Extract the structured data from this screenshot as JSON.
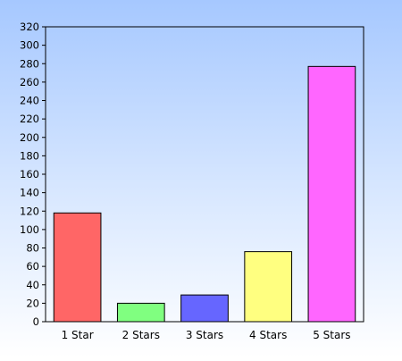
{
  "chart_data": {
    "type": "bar",
    "title": "",
    "xlabel": "",
    "ylabel": "",
    "categories": [
      "1 Star",
      "2 Stars",
      "3 Stars",
      "4 Stars",
      "5 Stars"
    ],
    "values": [
      118,
      20,
      29,
      76,
      277
    ],
    "colors": [
      "#ff6666",
      "#80ff80",
      "#6666ff",
      "#ffff80",
      "#ff66ff"
    ],
    "ylim": [
      0,
      320
    ],
    "yticks": [
      0,
      20,
      40,
      60,
      80,
      100,
      120,
      140,
      160,
      180,
      200,
      220,
      240,
      260,
      280,
      300,
      320
    ],
    "grid": false,
    "legend": "none",
    "background": {
      "gradient_top": "#a6c8ff",
      "gradient_bottom": "#ffffff"
    },
    "plot_background": "none",
    "border_color": "#000000",
    "bar_border_color": "#000000",
    "text_color": "#000000"
  }
}
